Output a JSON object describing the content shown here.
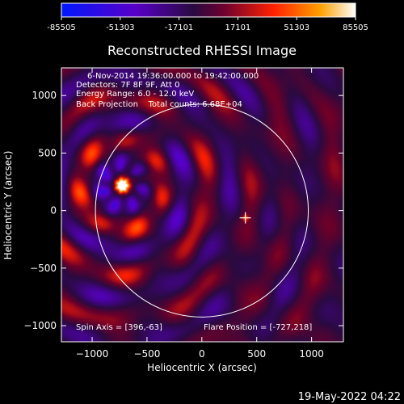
{
  "colorbar": {
    "tick_labels": [
      "-85505",
      "-51303",
      "-17101",
      "17101",
      "51303",
      "85505"
    ],
    "min": -85505,
    "max": 85505
  },
  "chart_data": {
    "type": "heatmap",
    "title": "Reconstructed RHESSI Image",
    "xlabel": "Heliocentric X (arcsec)",
    "ylabel": "Heliocentric Y (arcsec)",
    "xlim": [
      -1280,
      1290
    ],
    "ylim": [
      -1140,
      1240
    ],
    "x_ticks": [
      -1000,
      -500,
      0,
      500,
      1000
    ],
    "x_tick_labels": [
      "−1000",
      "−500",
      "0",
      "500",
      "1000"
    ],
    "y_ticks": [
      -1000,
      -500,
      0,
      500,
      1000
    ],
    "y_tick_labels": [
      "−1000",
      "−500",
      "0",
      "500",
      "1000"
    ],
    "solar_disk_radius": 970,
    "bright_source": {
      "x": -727,
      "y": 218
    },
    "crosshair": {
      "x": 396,
      "y": -63
    },
    "info_lines": [
      "6-Nov-2014 19:36:00.000 to 19:42:00.000",
      "Detectors: 7F 8F 9F, Att 0",
      "Energy Range: 6.0 - 12.0 keV",
      "Back Projection    Total counts: 6.68E+04"
    ],
    "spin_axis": "Spin Axis = [396,-63]",
    "flare_position": "Flare Position = [-727,218]",
    "colormap": [
      "#0000ff",
      "#6a00b0",
      "#3a0a50",
      "#ff1a00",
      "#ff9a00",
      "#ffffff"
    ]
  },
  "footer": {
    "timestamp": "19-May-2022 04:22"
  }
}
